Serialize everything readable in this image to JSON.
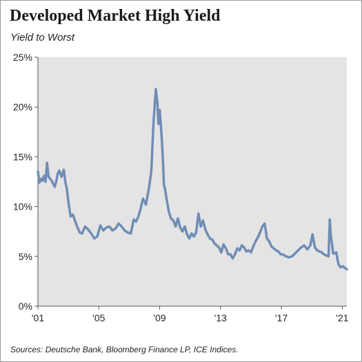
{
  "header": {
    "title": "Developed Market High Yield",
    "subtitle": "Yield to Worst"
  },
  "footer": {
    "source": "Sources: Deutsche Bank, Bloomberg Finance LP, ICE Indices."
  },
  "colors": {
    "line": "#6f8db5",
    "plot_background": "#e4e4e4",
    "border": "#9a9a9a"
  },
  "chart_data": {
    "type": "line",
    "title": "Developed Market High Yield",
    "subtitle": "Yield to Worst",
    "xlabel": "",
    "ylabel": "",
    "xlim": [
      2001.0,
      2021.3
    ],
    "ylim": [
      0,
      25
    ],
    "y_ticks": [
      {
        "value": 0,
        "label": "0%"
      },
      {
        "value": 5,
        "label": "5%"
      },
      {
        "value": 10,
        "label": "10%"
      },
      {
        "value": 15,
        "label": "15%"
      },
      {
        "value": 20,
        "label": "20%"
      },
      {
        "value": 25,
        "label": "25%"
      }
    ],
    "x_ticks": [
      {
        "value": 2001,
        "label": "'01"
      },
      {
        "value": 2005,
        "label": "'05"
      },
      {
        "value": 2009,
        "label": "'09"
      },
      {
        "value": 2013,
        "label": "'13"
      },
      {
        "value": 2017,
        "label": "'17"
      },
      {
        "value": 2021,
        "label": "'21"
      }
    ],
    "grid": false,
    "legend": "none",
    "series": [
      {
        "x": [
          2001.0,
          2001.1,
          2001.2,
          2001.3,
          2001.4,
          2001.5,
          2001.6,
          2001.7,
          2001.8,
          2001.9,
          2002.0,
          2002.1,
          2002.2,
          2002.3,
          2002.4,
          2002.55,
          2002.7,
          2002.8,
          2002.9,
          2003.0,
          2003.15,
          2003.3,
          2003.45,
          2003.6,
          2003.75,
          2003.9,
          2004.1,
          2004.3,
          2004.5,
          2004.7,
          2004.9,
          2005.1,
          2005.3,
          2005.5,
          2005.7,
          2005.9,
          2006.1,
          2006.3,
          2006.5,
          2006.7,
          2006.9,
          2007.1,
          2007.3,
          2007.45,
          2007.6,
          2007.75,
          2007.9,
          2008.1,
          2008.3,
          2008.45,
          2008.6,
          2008.75,
          2008.85,
          2008.92,
          2009.0,
          2009.08,
          2009.15,
          2009.22,
          2009.28,
          2009.35,
          2009.45,
          2009.6,
          2009.75,
          2009.9,
          2010.05,
          2010.2,
          2010.35,
          2010.5,
          2010.65,
          2010.8,
          2010.95,
          2011.1,
          2011.25,
          2011.4,
          2011.55,
          2011.7,
          2011.85,
          2012.0,
          2012.15,
          2012.3,
          2012.45,
          2012.6,
          2012.75,
          2012.9,
          2013.05,
          2013.2,
          2013.35,
          2013.5,
          2013.65,
          2013.8,
          2013.95,
          2014.1,
          2014.25,
          2014.4,
          2014.55,
          2014.7,
          2014.85,
          2015.0,
          2015.15,
          2015.3,
          2015.45,
          2015.6,
          2015.75,
          2015.9,
          2016.05,
          2016.2,
          2016.35,
          2016.5,
          2016.65,
          2016.8,
          2016.95,
          2017.1,
          2017.3,
          2017.5,
          2017.7,
          2017.9,
          2018.1,
          2018.3,
          2018.5,
          2018.7,
          2018.9,
          2019.05,
          2019.2,
          2019.35,
          2019.5,
          2019.65,
          2019.8,
          2019.95,
          2020.1,
          2020.18,
          2020.25,
          2020.32,
          2020.4,
          2020.5,
          2020.6,
          2020.75,
          2020.9,
          2021.05,
          2021.2,
          2021.3
        ],
        "y": [
          13.5,
          12.4,
          12.8,
          12.6,
          13.1,
          12.5,
          14.4,
          13.0,
          12.8,
          12.6,
          12.3,
          12.0,
          12.5,
          13.3,
          13.6,
          13.0,
          13.7,
          12.5,
          11.8,
          10.5,
          9.0,
          9.2,
          8.5,
          7.9,
          7.4,
          7.3,
          8.0,
          7.7,
          7.3,
          6.8,
          7.0,
          8.1,
          7.6,
          7.9,
          8.0,
          7.6,
          7.8,
          8.3,
          8.0,
          7.6,
          7.4,
          7.3,
          8.7,
          8.5,
          9.0,
          9.8,
          10.8,
          10.2,
          11.9,
          13.5,
          18.5,
          21.8,
          20.5,
          18.3,
          19.7,
          18.2,
          16.5,
          14.5,
          12.2,
          11.8,
          10.8,
          9.5,
          8.8,
          8.6,
          8.0,
          8.8,
          7.9,
          7.5,
          8.0,
          7.2,
          6.8,
          7.3,
          7.0,
          7.4,
          9.3,
          8.0,
          8.6,
          7.7,
          7.2,
          6.8,
          6.7,
          6.3,
          6.1,
          5.9,
          5.4,
          6.2,
          5.8,
          5.2,
          5.2,
          4.8,
          5.2,
          5.8,
          5.6,
          6.1,
          5.9,
          5.5,
          5.6,
          5.4,
          6.0,
          6.5,
          6.9,
          7.4,
          8.0,
          8.3,
          6.8,
          6.5,
          6.0,
          5.8,
          5.6,
          5.5,
          5.2,
          5.2,
          5.0,
          4.9,
          5.0,
          5.3,
          5.6,
          5.9,
          6.1,
          5.7,
          6.1,
          7.2,
          5.9,
          5.6,
          5.5,
          5.4,
          5.2,
          5.1,
          5.0,
          8.7,
          7.0,
          6.3,
          5.3,
          5.3,
          5.4,
          4.2,
          3.9,
          4.0,
          3.8,
          3.7
        ]
      }
    ]
  }
}
